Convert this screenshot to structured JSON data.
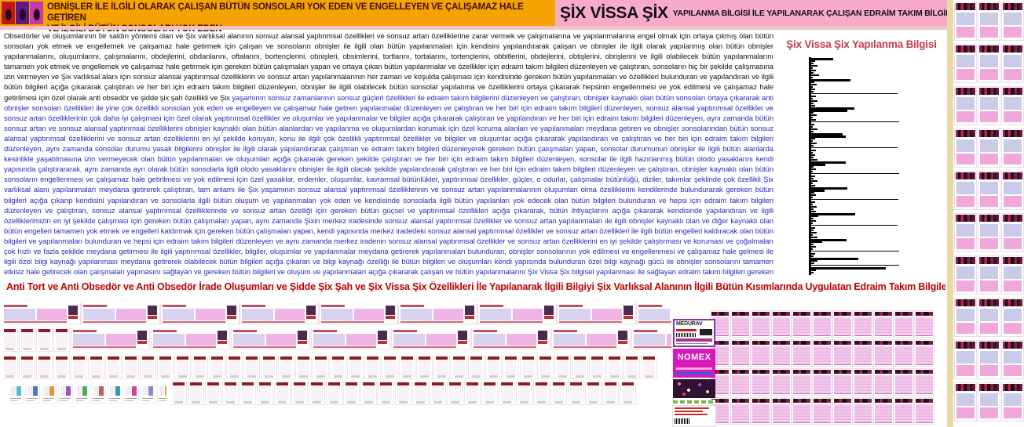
{
  "header": {
    "left_banner": {
      "line1": "OBNİŞLER İLE İLGİLİ OLARAK ÇALIŞAN BÜTÜN SONSOLARI YOK EDEN VE ENGELLEYEN VE ÇALIŞAMAZ HALE GETİREN",
      "line2": "VE İLGİLİ BÜTÜN SONSOLARI YOK EDEN",
      "bg_color": "#F5A300",
      "text_color": "#401105",
      "figure_colors": [
        "#c01818",
        "#5a1a8a",
        "#c838a8"
      ]
    },
    "right_banner": {
      "title_large": "ŞİX VİSSA ŞİX",
      "title_small": "YAPILANMA BİLGİSİ İLE YAPILANARAK ÇALIŞAN EDRAİM TAKIM BİLGİLERİ",
      "bg_color": "#F8ABC8"
    }
  },
  "body": {
    "text_black": "Obsedörler ve oluşumlarının bir saldırı yöntemi olan ve Şix varlıksal alanının sonsuz alansal yaptırımsal özellikleri ve sonsuz artan özelliklerine zarar vermek ve çalışmalarına ve yapılanmalarına engel olmak için ortaya çıkmış olan bütün sonsoları yok etmek ve engellemek ve çalışamaz hale getirmek için çalışan ve sonsoların obnişler ile ilgili olan bütün yapılanmaları için kendisini yapılandırarak çalışan ve obnişler ile ilgili olarak yapılanmış olan bütün obnişler yapılanmalarını, oluşumlarını, çalışmalarını, obdejlerini, obdanlarını, oftalarını, bortençlerini, obnişleri, obsimlerini, tortlarını, tortalarını, tortençlerini, obbitlerini, obdejlerini, obtişlerini, obrişlerini ve ilgili olabilecek bütün yapılanmalarını tamamen yok etmek ve engellemek ve çalışamaz hale getirmek için gereken bütün çalışmaları yapan ve ortaya çıkan bütün yapılanmalar ve özellikler için edraim takım bilgileri düzenleyen ve çalıştıran, sonsoların hiç bir şekilde çalışmasına izin vermeyen ve Şix varlıksal alanı için sonsuz alansal yaptırımsal özelliklerin ve sonsuz artan yapılanmalarının her zaman ve koşulda çalışması için kendisinde gereken bütün yapılanmaları ve özellikleri bulunduran ve yapılandıran ve ilgili bütün bilgileri açığa çıkararak çalıştıran ve her biri için edraim takım bilgileri düzenleyen, obnişler ile ilgili olabilecek bütün sonsolar yapılanma ve özelliklerini ortaya çıkararak hepsinin engellenmesi ve yok edilmesi ve çalışamaz hale getirilmesi için özel olarak anti obsedör ve şidde şix şah özellikli ve Şix",
    "text_blue": "yaşamının sonsuz zamanlarının sonsuz güçleri özellikleri ile edraim takım bilgilerini düzenleyen ve çalıştıran, obnişler kaynaklı olan bütün sonsoları ortaya çıkararak anti obnişler sonsoları özellikleri ile yine çok özellikli sonsoları yok eden ve engelleyen ve çalışamaz hale getiren yapılanmalar düzenleyen ve çalıştıran ve her biri için edraim takım bilgileri düzenleyen, sonsuz alansal yaptırımsal özellikler ve sonsuz artan özelliklerinin çok daha iyi çalışması için özel olarak yaptırımsal özellikler ve oluşumlar ve yapılanmalar ve bilgiler açığa çıkararak çalıştıran ve yapılandıran ve her biri için edraim takım bilgileri düzenleyen, aynı zamanda bütün sonsuz artan ve sonsuz alansal yaptırımsal özelliklerini obnişler kaynaklı olan bütün alanlardan ve yapılanma ve oluşumlardan korumak için özel koruma alanları ve yapılanmaları meydana getiren ve obnişler sonsolarından bütün sonsuz alansal yaptırımsal özelliklerini ve sonsuz artan özelliklerini en iyi şekilde koruyan, konu ile ilgili çok özellikli yaptırımsal özellikler ve bilgiler ve oluşumlar açığa çıkararak yapılandıran ve çalıştıran ve her biri için edraim takım bilgileri düzenleyen, aynı zamanda sonsolar durumu yasak bilgilerini obnişler ile ilgili olarak yapılandırarak çalıştıran ve edraim takım bilgileri düzenleyerek gereken bütün çalışmaları yapan, sonsolar durumunun obnişler ile ilgili bütün alanlarda kesinlikle yaşatılmasına izin vermeyecek olan bütün yapılanmaları ve oluşumları açığa çıkararak gereken şekilde çalıştıran ve her biri için edraim takım bilgileri düzenleyen, sonsolar ile ilgili hazırlanmış bütün olodo yasaklarını kendi yapısında çalıştırararak, aynı zamanda ayrı olarak bütün sonsolarla ilgili olodo yasaklarını obnişler ile ilgili olacak şekilde yapılandırarak çalıştıran ve her biri için edraim takım bilgileri düzenleyen ve çalıştıran, obnişler kaynaklı olan bütün sonsoların engellenmesi ve çalışamaz hale getirilmesi ve yok edilmesi için özel yasaklar, erdemler, oluşumlar, kavramsal bütünlükler, yaptırımsal özellikler, güçler, o odurlar, çalışmalar bütünlüğü, diziler, takımlar şeklinde çok özellikli Şix varlıksal alanı yapılanmaları meydana getirerek çalıştıran, tam anlamı ile Şix yaşamının sonsuz alansal yaptırımsal özelliklerinin ve sonsuz artan yapılanmalarının oluşumları olma özelliklerini kendilerinde bulundurarak gereken bütün bilgileri açığa çıkarıp kendisini yapılandıran ve sonsolarla ilgili bütün oluşum ve yapılanmaları yok eden ve kendisinde sonsolarla ilgili bütün yapılanları yok edecek olan bütün bilgileri bulunduran ve hepsi için edraim takım bilgileri düzenleyen ve çalıştıran, sonsuz alansal yaptırımsal özelliklerinde ve sonsuz artan özelliği için gereken bütün güçsel ve yaptırımsal özellikleri açığa çıkararak, bütün ihtiyaçlarını açığa çıkararak kendisinde yapılandıran ve ilgili özelliklerimizin en iyi şekilde çalışması için gereken bütün çalışmaları yapan, aynı zamanda Şixin merkez iradesinde sonsuz alansal yaptırımsal özellikler ve sonsuz artan yapılanmaları ile ilgili obnişler kaynaklı olan ve diğer kaynaklı olan bütün engelleri tamamen yok etmek ve engelleri kaldırmak için gereken bütün çalışmaları yapan, kendi yapısında merkez iradedeki sonsuz alansal yaptırımsal özellikler ve sonsuz artan özellikleri ile ilgili bütün engelleri kaldıracak olan bütün bilgileri ve yapılanmaları bulunduran ve hepsi için edraim takım bilgileri düzenleyen ve aynı zamanda merkez iradenin sonsuz alansal yaptırımsal özellikler ve sonsuz artan özelliklerini en iyi şekilde çalıştırması ve koruması ve çoğalmaları çok hızlı ve fazla şekilde meydana getirmesi ile ilgili yaptırımsal özellikler, bilgiler, oluşumlar ve yapılanmalar meydana getirerek yapılanmaları bulunduran, obnişler sonsolarının yok edilmesi ve engellenmesi ve çalışamaz hale gelmesi ile ilgili özel bilgi kaynağı yapılanması meydana getirerek olabilecek bütün bilgileri açığa çıkaran ve bilgi kaynağı özelliği ile bütün bilgileri ve oluşumları kendi yapısında bulunduran özel bilgi kaynağı gücü ile obnişler sonsolarını tamamen etkisiz hale getirecek olan çalışmaları yapmasını sağlayan ve gereken bütün bilgileri ve oluşum ve yapılanmaları açığa çıkararak çalışan ve bütün yapılanmalarını Şix Vissa Şix bilgisel yapılanması ile sağlayan edraim takım bilgileri gereken şekilde yapılanır.",
    "blue_color": "#2B2BC0"
  },
  "chart_data": {
    "type": "bar",
    "orientation": "horizontal",
    "title": "Şix Vissa Şix Yapılanma Bilgisi",
    "title_color": "#C23B4E",
    "bar_color": "#000000",
    "xlabel": "",
    "ylabel": "",
    "axis_labels_visible": false,
    "legend": false,
    "note": "miniature unlabeled horizontal bar chart; values are relative bar lengths (px, max 115)",
    "values": [
      28,
      5,
      3,
      8,
      2,
      6,
      3,
      10,
      2,
      50,
      4,
      7,
      2,
      5,
      3,
      110,
      6,
      2,
      8,
      3,
      5,
      55,
      46,
      3,
      7,
      2,
      6,
      112,
      4,
      2,
      8,
      3,
      40,
      44,
      5,
      2,
      7,
      3,
      110,
      6,
      2,
      5,
      3,
      8,
      44,
      18,
      3,
      6,
      2,
      112,
      5,
      3,
      8,
      2,
      5,
      46,
      17,
      4,
      6,
      2,
      111,
      5,
      2,
      7,
      3,
      6,
      56,
      9,
      3,
      6,
      2,
      110,
      5,
      3,
      7,
      2,
      8,
      45,
      14,
      3,
      6,
      2,
      112,
      5,
      3,
      60,
      8,
      4,
      112,
      95,
      6,
      3
    ]
  },
  "subtitle": {
    "text": "Anti Tort ve Anti Obsedör ve Anti Obsedör İrade Oluşumları ve Şidde Şix Şah ve Şix Vissa Şix Özellikleri İle Yapılanarak İlgili Bilgiyi Şix Varlıksal Alanının İlgili Bütün Kısımlarında Uygulatan Edraim Takım Bilgileri Yapılanması",
    "color": "#C00000"
  },
  "right_thumbnails": {
    "columns": 3,
    "rows": 10
  },
  "bottom_grid": {
    "columns": 11,
    "rows": 4
  },
  "collage": {
    "banner_row1_count": 9,
    "row2_cup_count": 4,
    "row2_banner_count": 8,
    "cup_row_count": 38,
    "cup_row_last_count": 27,
    "scrap_colors": [
      "#58B8C8",
      "#4878D0",
      "#E89038",
      "#9858B8",
      "#50A858",
      "#D05858",
      "#3898A8",
      "#C84898",
      "#8888C8",
      "#D8A848"
    ],
    "labels": {
      "medurav": "MEDURAV",
      "nomex": "NOMEX"
    }
  }
}
